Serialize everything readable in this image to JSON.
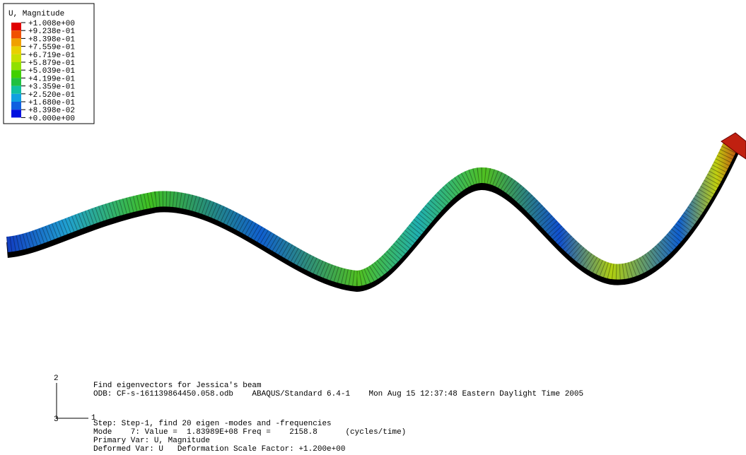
{
  "legend": {
    "title": "U, Magnitude",
    "labels": [
      "+1.008e+00",
      "+9.238e-01",
      "+8.398e-01",
      "+7.559e-01",
      "+6.719e-01",
      "+5.879e-01",
      "+5.039e-01",
      "+4.199e-01",
      "+3.359e-01",
      "+2.520e-01",
      "+1.680e-01",
      "+8.398e-02",
      "+0.000e+00"
    ]
  },
  "triad": {
    "y": "2",
    "z": "3",
    "x": "1"
  },
  "info": [
    "Find eigenvectors for Jessica's beam",
    "ODB: CF-s-161139864450.058.odb    ABAQUS/Standard 6.4-1    Mon Aug 15 12:37:48 Eastern Daylight Time 2005",
    "Step: Step-1, find 20 eigen -modes and -frequencies",
    "Mode    7: Value =  1.83989E+08 Freq =    2158.8      (cycles/time)",
    "Primary Var: U, Magnitude",
    "Deformed Var: U   Deformation Scale Factor: +1.200e+00"
  ]
}
